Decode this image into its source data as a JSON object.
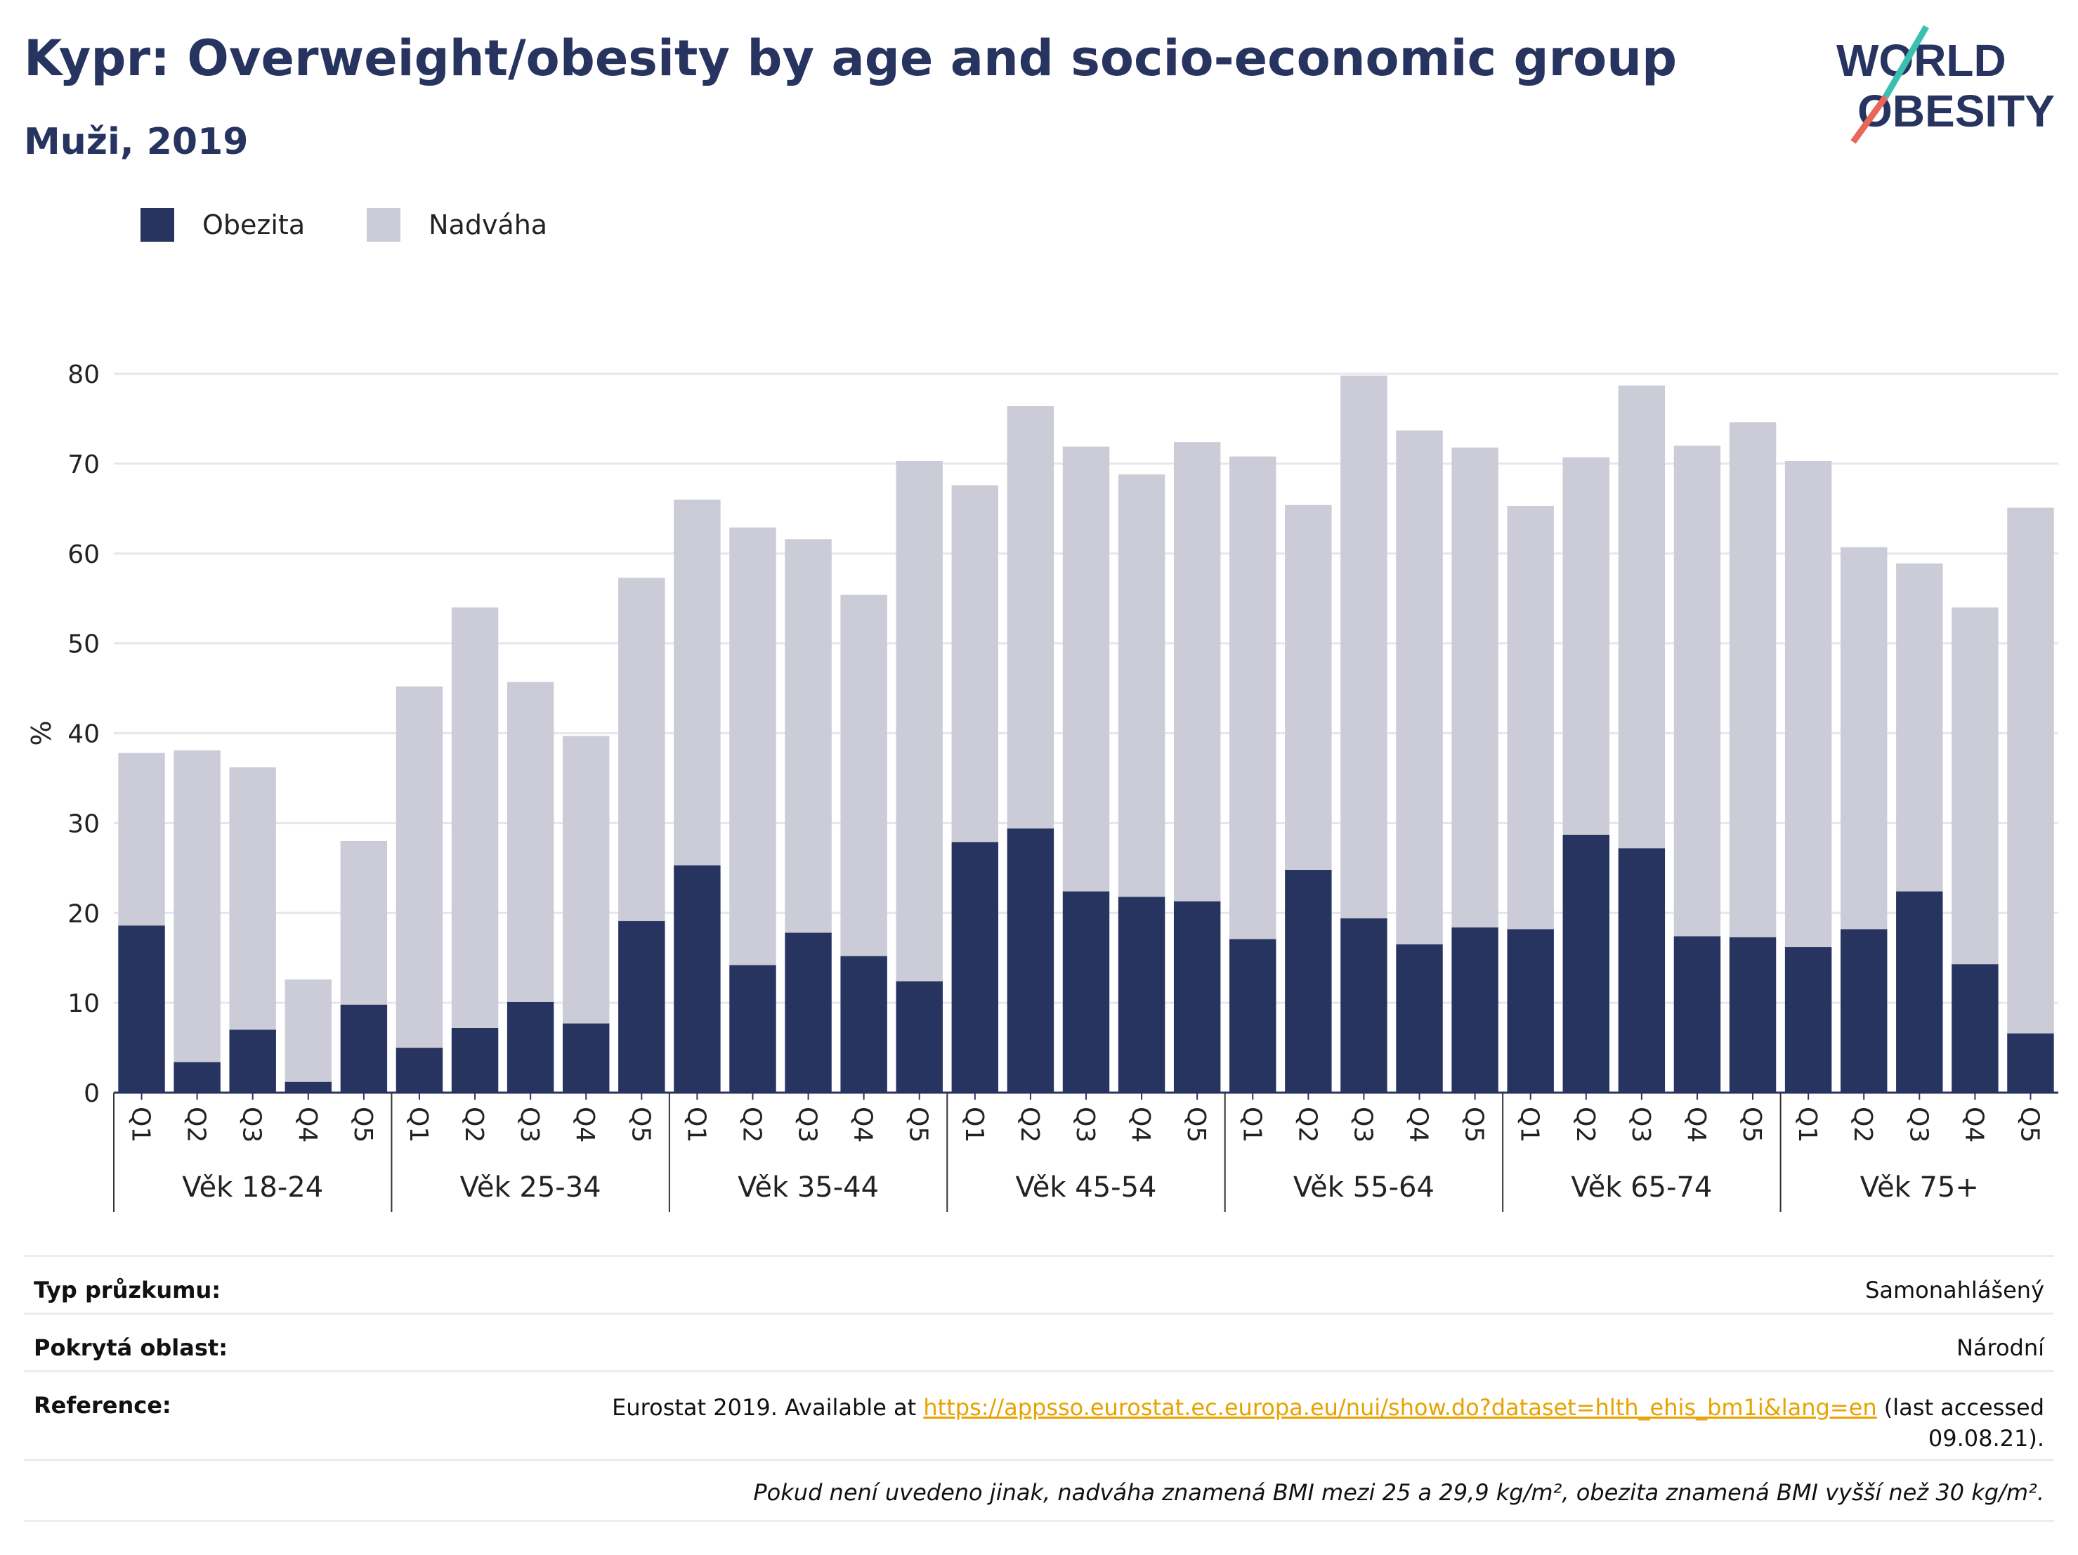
{
  "header": {
    "title": "Kypr: Overweight/obesity by age and socio-economic group",
    "subtitle": "Muži, 2019",
    "logo_line1": "WORLD",
    "logo_line2": "OBESITY"
  },
  "colors": {
    "obesity": "#283460",
    "overweight": "#cbccd8",
    "grid": "#e6e6ee",
    "axis": "#283460",
    "logo_teal": "#3bbfb0",
    "logo_red": "#e8665a"
  },
  "chart_data": {
    "type": "bar",
    "stacked": true,
    "ylabel": "%",
    "ylim": [
      0,
      80
    ],
    "yticks": [
      0,
      10,
      20,
      30,
      40,
      50,
      60,
      70,
      80
    ],
    "legend_position": "top-left",
    "groups": [
      "Věk 18-24",
      "Věk 25-34",
      "Věk 35-44",
      "Věk 45-54",
      "Věk 55-64",
      "Věk 65-74",
      "Věk 75+"
    ],
    "subcategories": [
      "Q1",
      "Q2",
      "Q3",
      "Q4",
      "Q5"
    ],
    "series": [
      {
        "name": "Obezita",
        "values": [
          [
            18.6,
            3.4,
            7.0,
            1.2,
            9.8
          ],
          [
            5.0,
            7.2,
            10.1,
            7.7,
            19.1
          ],
          [
            25.3,
            14.2,
            17.8,
            15.2,
            12.4
          ],
          [
            27.9,
            29.4,
            22.4,
            21.8,
            21.3
          ],
          [
            17.1,
            24.8,
            19.4,
            16.5,
            18.4
          ],
          [
            18.2,
            28.7,
            27.2,
            17.4,
            17.3
          ],
          [
            16.2,
            18.2,
            22.4,
            14.3,
            6.6
          ]
        ]
      },
      {
        "name": "Nadváha",
        "values": [
          [
            19.2,
            34.7,
            29.2,
            11.4,
            18.2
          ],
          [
            40.2,
            46.8,
            35.6,
            32.0,
            38.2
          ],
          [
            40.7,
            48.7,
            43.8,
            40.2,
            57.9
          ],
          [
            39.7,
            47.0,
            49.5,
            47.0,
            51.1
          ],
          [
            53.7,
            40.6,
            60.4,
            57.2,
            53.4
          ],
          [
            47.1,
            42.0,
            51.5,
            54.6,
            57.3
          ],
          [
            54.1,
            42.5,
            36.5,
            39.7,
            58.5
          ]
        ]
      }
    ]
  },
  "info": {
    "rows": [
      {
        "label": "Typ průzkumu:",
        "value": "Samonahlášený"
      },
      {
        "label": "Pokrytá oblast:",
        "value": "Národní"
      }
    ],
    "reference_label": "Reference:",
    "reference_prefix": "Eurostat 2019. Available at ",
    "reference_link": "https://appsso.eurostat.ec.europa.eu/nui/show.do?dataset=hlth_ehis_bm1i&lang=en",
    "reference_suffix_1": " (last accessed",
    "reference_suffix_2": "09.08.21).",
    "note": "Pokud není uvedeno jinak, nadváha znamená BMI mezi 25 a 29,9 kg/m², obezita znamená BMI vyšší než 30 kg/m²."
  }
}
